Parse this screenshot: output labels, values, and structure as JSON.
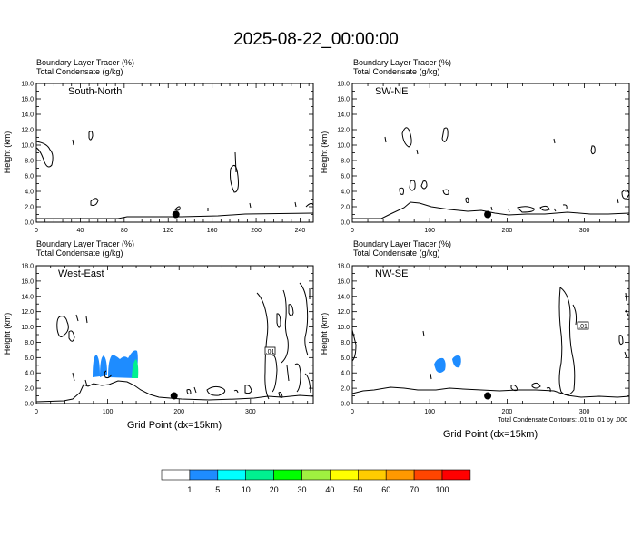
{
  "title": "2025-08-22_00:00:00",
  "panel_line1": "Boundary Layer Tracer   (%)",
  "panel_line2": "Total Condensate   (g/kg)",
  "ylabel": "Height (km)",
  "xlabel": "Grid Point (dx=15km)",
  "contour_note": "Total Condensate Contours: .01 to .01 by .000",
  "contour_label": ".01",
  "chart_data": [
    {
      "type": "contour",
      "panel": "South-North",
      "ylabel": "Height (km)",
      "ylim": [
        0,
        18
      ],
      "yticks": [
        "0.0",
        "2.0",
        "4.0",
        "6.0",
        "8.0",
        "10.0",
        "12.0",
        "14.0",
        "16.0",
        "18.0"
      ],
      "xlim": [
        0,
        252
      ],
      "xticks": [
        "0",
        "40",
        "80",
        "120",
        "160",
        "200",
        "240"
      ],
      "marker": {
        "x": 127,
        "y": 1.0
      }
    },
    {
      "type": "contour",
      "panel": "SW-NE",
      "ylabel": "Height (km)",
      "ylim": [
        0,
        18
      ],
      "yticks": [
        "0.0",
        "2.0",
        "4.0",
        "6.0",
        "8.0",
        "10.0",
        "12.0",
        "14.0",
        "16.0",
        "18.0"
      ],
      "xlim": [
        0,
        358
      ],
      "xticks": [
        "0",
        "100",
        "200",
        "300"
      ],
      "marker": {
        "x": 175,
        "y": 1.0
      }
    },
    {
      "type": "contour",
      "panel": "West-East",
      "ylabel": "Height (km)",
      "xlabel": "Grid Point (dx=15km)",
      "ylim": [
        0,
        18
      ],
      "yticks": [
        "0.0",
        "2.0",
        "4.0",
        "6.0",
        "8.0",
        "10.0",
        "12.0",
        "14.0",
        "16.0",
        "18.0"
      ],
      "xlim": [
        0,
        388
      ],
      "xticks": [
        "0",
        "100",
        "200",
        "300"
      ],
      "marker": {
        "x": 193,
        "y": 1.0
      }
    },
    {
      "type": "contour",
      "panel": "NW-SE",
      "ylabel": "Height (km)",
      "xlabel": "Grid Point (dx=15km)",
      "ylim": [
        0,
        18
      ],
      "yticks": [
        "0.0",
        "2.0",
        "4.0",
        "6.0",
        "8.0",
        "10.0",
        "12.0",
        "14.0",
        "16.0",
        "18.0"
      ],
      "xlim": [
        0,
        358
      ],
      "xticks": [
        "0",
        "100",
        "200",
        "300"
      ],
      "marker": {
        "x": 175,
        "y": 1.0
      }
    }
  ],
  "colorbar": {
    "labels": [
      "1",
      "5",
      "10",
      "20",
      "30",
      "40",
      "50",
      "60",
      "70",
      "100"
    ],
    "colors": [
      "#ffffff",
      "#1e8cff",
      "#00ffff",
      "#00f090",
      "#00ff00",
      "#a0f040",
      "#ffff00",
      "#ffcc00",
      "#ff9900",
      "#ff4500",
      "#ff0000"
    ]
  }
}
